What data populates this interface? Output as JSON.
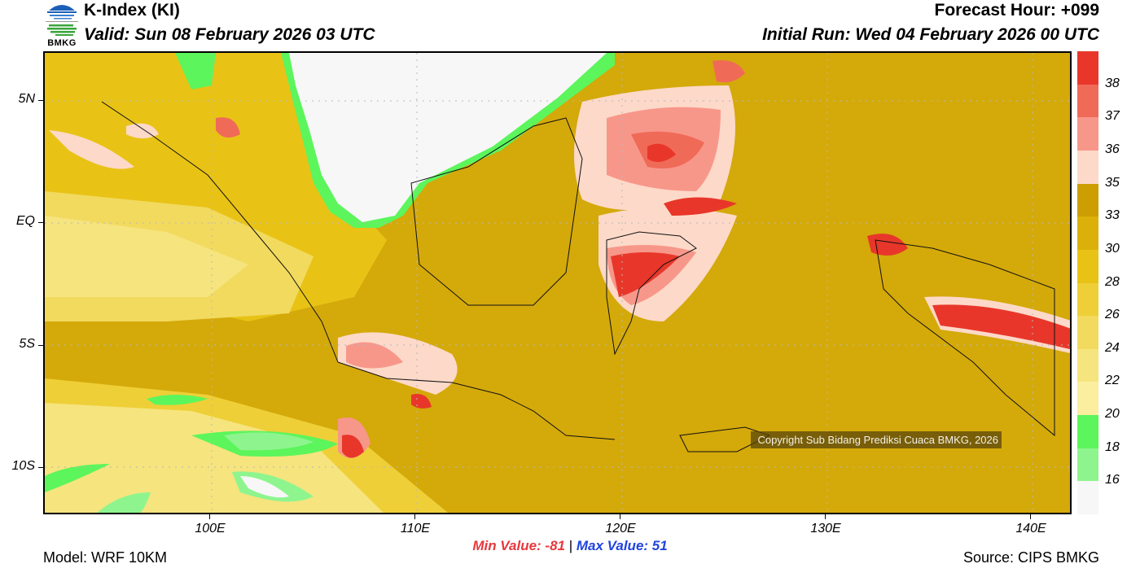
{
  "header": {
    "title": "K-Index (KI)",
    "valid": "Valid: Sun 08 February 2026 03 UTC",
    "forecast_hour": "Forecast Hour: +099",
    "initial_run": "Initial Run: Wed 04 February 2026 00 UTC",
    "logo_text": "BMKG"
  },
  "map": {
    "lat_labels": [
      "5N",
      "EQ",
      "5S",
      "10S"
    ],
    "lon_labels": [
      "100E",
      "110E",
      "120E",
      "130E",
      "140E"
    ],
    "copyright": "Copyright Sub Bidang Prediksi Cuaca BMKG, 2026"
  },
  "colorbar": {
    "levels": [
      "38",
      "37",
      "36",
      "35",
      "33",
      "30",
      "28",
      "26",
      "24",
      "22",
      "20",
      "18",
      "16"
    ],
    "colors": [
      "#e8372a",
      "#f06a58",
      "#f7978a",
      "#fdd9c9",
      "#cc9e02",
      "#dbb00a",
      "#e8c316",
      "#eecf37",
      "#f2da5f",
      "#f6e47e",
      "#fbee9e",
      "#5cf55c",
      "#8ef58e",
      "#f7f7f7"
    ]
  },
  "footer": {
    "min_value": "Min Value: -81",
    "separator": "|",
    "max_value": "Max Value:  51",
    "model": "Model: WRF 10KM",
    "source": "Source: CIPS BMKG"
  }
}
